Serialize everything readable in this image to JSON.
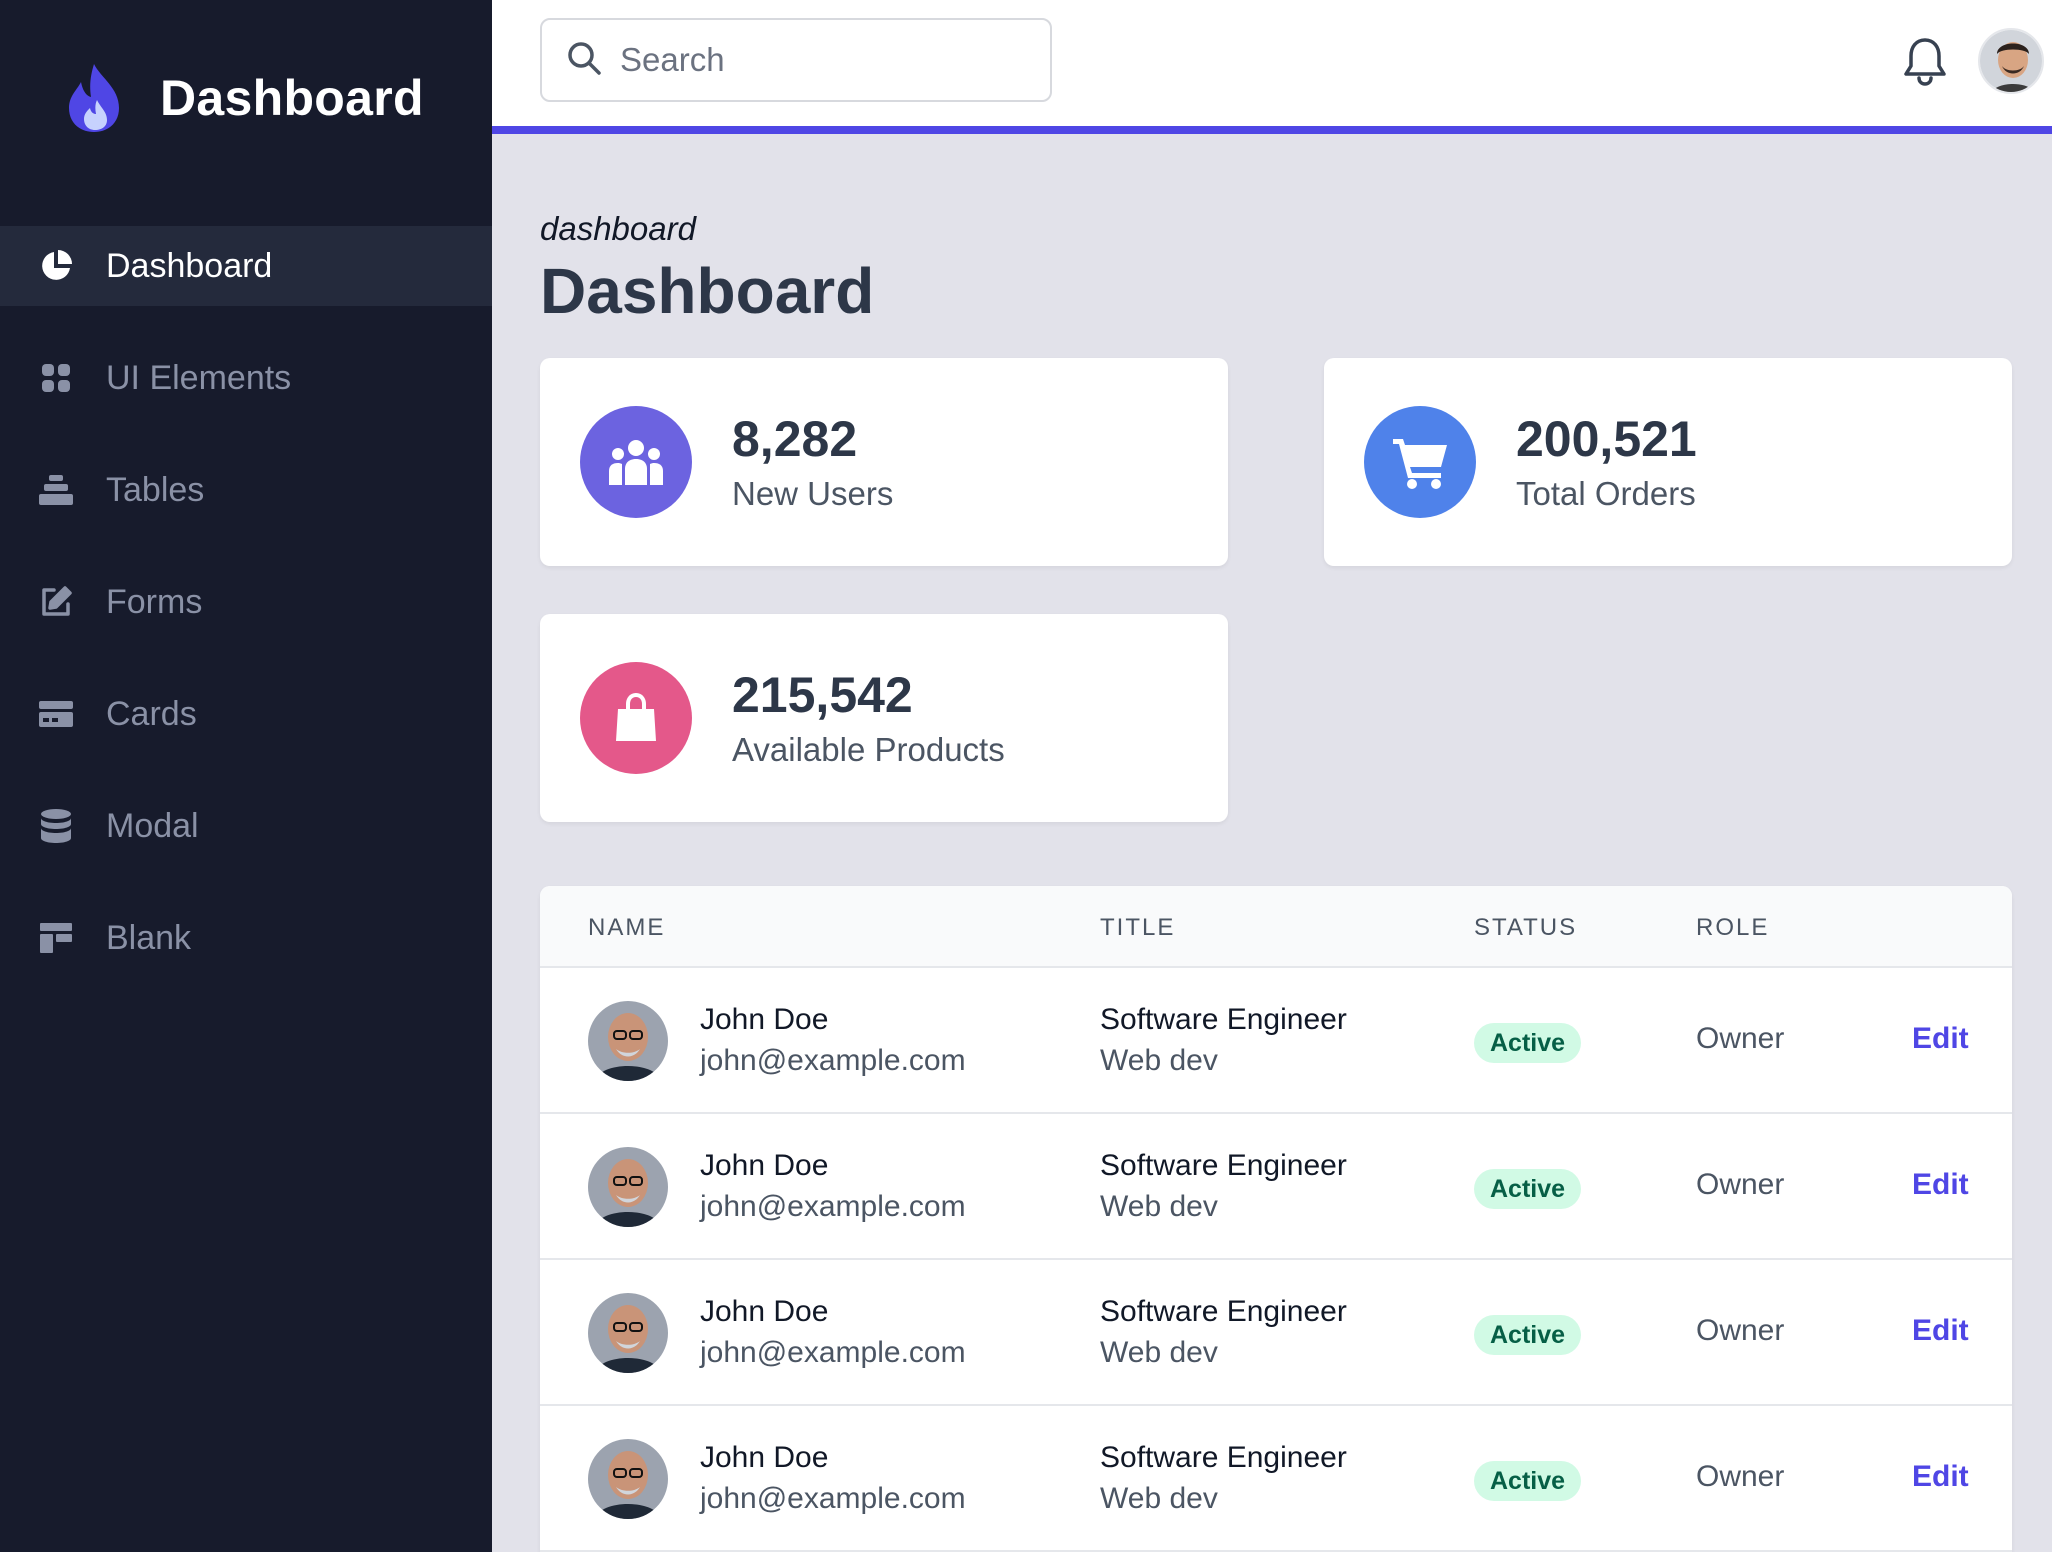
{
  "brand": {
    "name": "Dashboard",
    "logo_icon": "flame-icon"
  },
  "sidebar": {
    "items": [
      {
        "label": "Dashboard",
        "icon": "pie-chart-icon",
        "active": true
      },
      {
        "label": "UI Elements",
        "icon": "grid-icon",
        "active": false
      },
      {
        "label": "Tables",
        "icon": "stack-icon",
        "active": false
      },
      {
        "label": "Forms",
        "icon": "edit-icon",
        "active": false
      },
      {
        "label": "Cards",
        "icon": "credit-card-icon",
        "active": false
      },
      {
        "label": "Modal",
        "icon": "database-icon",
        "active": false
      },
      {
        "label": "Blank",
        "icon": "layout-icon",
        "active": false
      }
    ]
  },
  "header": {
    "search": {
      "placeholder": "Search",
      "value": ""
    },
    "notification_icon": "bell-icon"
  },
  "page": {
    "breadcrumb": "dashboard",
    "title": "Dashboard"
  },
  "stats": [
    {
      "value": "8,282",
      "label": "New Users",
      "icon": "users-icon",
      "color": "#6c63e0"
    },
    {
      "value": "200,521",
      "label": "Total Orders",
      "icon": "cart-icon",
      "color": "#4f82ea"
    },
    {
      "value": "215,542",
      "label": "Available Products",
      "icon": "shopping-bag-icon",
      "color": "#e4588a"
    }
  ],
  "table": {
    "headers": {
      "name": "NAME",
      "title": "TITLE",
      "status": "STATUS",
      "role": "ROLE"
    },
    "rows": [
      {
        "name": "John Doe",
        "email": "john@example.com",
        "title": "Software Engineer",
        "department": "Web dev",
        "status": "Active",
        "role": "Owner",
        "action": "Edit"
      },
      {
        "name": "John Doe",
        "email": "john@example.com",
        "title": "Software Engineer",
        "department": "Web dev",
        "status": "Active",
        "role": "Owner",
        "action": "Edit"
      },
      {
        "name": "John Doe",
        "email": "john@example.com",
        "title": "Software Engineer",
        "department": "Web dev",
        "status": "Active",
        "role": "Owner",
        "action": "Edit"
      },
      {
        "name": "John Doe",
        "email": "john@example.com",
        "title": "Software Engineer",
        "department": "Web dev",
        "status": "Active",
        "role": "Owner",
        "action": "Edit"
      }
    ]
  },
  "colors": {
    "sidebar_bg": "#171b2c",
    "sidebar_active_bg": "#242a3c",
    "accent": "#4f46e5",
    "content_bg": "#e2e2ea",
    "status_active_bg": "#d1fae5",
    "status_active_text": "#065f46"
  }
}
